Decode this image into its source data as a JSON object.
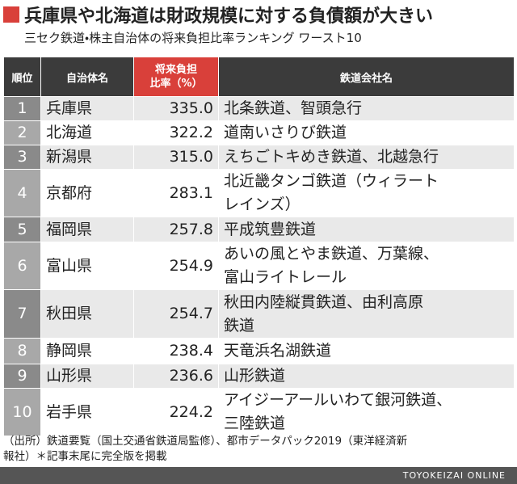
{
  "header": {
    "title": "兵庫県や北海道は財政規模に対する負債額が大きい",
    "subtitle": "三セク鉄道・株主自治体の将来負担比率ランキング ワースト10"
  },
  "table": {
    "columns": [
      "順位",
      "自治体名",
      [
        "将来負担",
        "比率（%）"
      ],
      "鉄道会社名"
    ],
    "rows": [
      [
        "1",
        "兵庫県",
        "335.0",
        [
          "北条鉄道、智頭急行"
        ]
      ],
      [
        "2",
        "北海道",
        "322.2",
        [
          "道南いさりび鉄道"
        ]
      ],
      [
        "3",
        "新潟県",
        "315.0",
        [
          "えちごトキめき鉄道、北越急行"
        ]
      ],
      [
        "4",
        "京都府",
        "283.1",
        [
          "北近畿タンゴ鉄道（ウィラート",
          "レインズ）"
        ]
      ],
      [
        "5",
        "福岡県",
        "257.8",
        [
          "平成筑豊鉄道"
        ]
      ],
      [
        "6",
        "富山県",
        "254.9",
        [
          "あいの風とやま鉄道、万葉線、",
          "富山ライトレール"
        ]
      ],
      [
        "7",
        "秋田県",
        "254.7",
        [
          "秋田内陸縦貫鉄道、由利高原",
          "鉄道"
        ]
      ],
      [
        "8",
        "静岡県",
        "238.4",
        [
          "天竜浜名湖鉄道"
        ]
      ],
      [
        "9",
        "山形県",
        "236.6",
        [
          "山形鉄道"
        ]
      ],
      [
        "10",
        "岩手県",
        "224.2",
        [
          "アイジーアールいわて銀河鉄道、",
          "三陸鉄道"
        ]
      ]
    ]
  },
  "footnote": [
    "（出所）鉄道要覧（国土交通省鉄道局監修）、都市データパック2019（東洋経済新",
    "報社）＊記事末尾に完全版を掲載"
  ],
  "footer": "TOYOKEIZAI ONLINE"
}
